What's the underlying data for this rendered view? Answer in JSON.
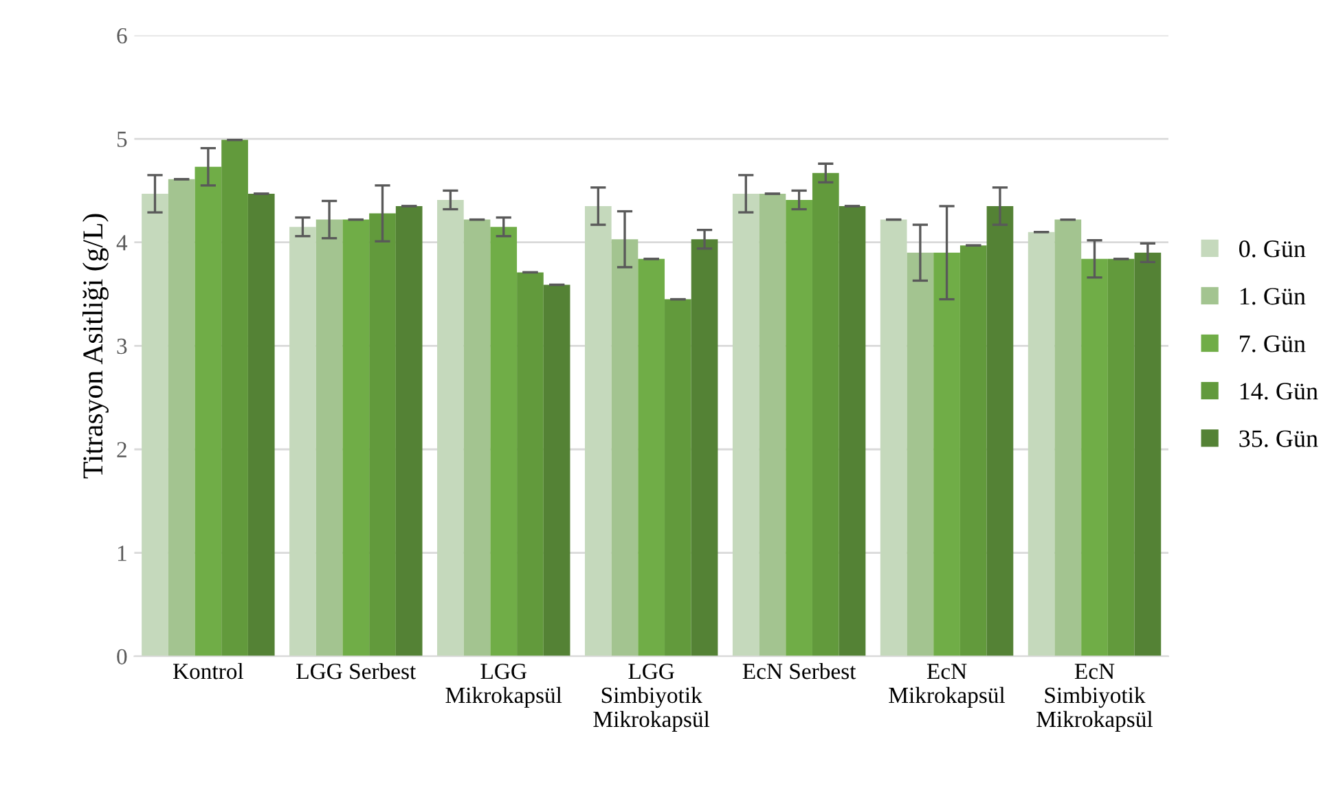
{
  "chart_data": {
    "type": "bar",
    "ylabel": "Titrasyon Asitliği (g/L)",
    "categories": [
      "Kontrol",
      "LGG Serbest",
      "LGG\nMikrokapsül",
      "LGG\nSimbiyotik\nMikrokapsül",
      "EcN Serbest",
      "EcN\nMikrokapsül",
      "EcN\nSimbiyotik\nMikrokapsül"
    ],
    "series": [
      {
        "name": "0. Gün",
        "color": "#c5d9bc",
        "values": [
          4.47,
          4.15,
          4.41,
          4.35,
          4.47,
          4.22,
          4.1
        ],
        "errors": [
          0.18,
          0.09,
          0.09,
          0.18,
          0.18,
          0,
          0
        ]
      },
      {
        "name": "1. Gün",
        "color": "#a3c490",
        "values": [
          4.61,
          4.22,
          4.22,
          4.03,
          4.47,
          3.9,
          4.22
        ],
        "errors": [
          0,
          0.18,
          0,
          0.27,
          0,
          0.27,
          0
        ]
      },
      {
        "name": "7. Gün",
        "color": "#70ad47",
        "values": [
          4.73,
          4.22,
          4.15,
          3.84,
          4.41,
          3.9,
          3.84
        ],
        "errors": [
          0.18,
          0,
          0.09,
          0,
          0.09,
          0.45,
          0.18
        ]
      },
      {
        "name": "14. Gün",
        "color": "#629a3c",
        "values": [
          4.99,
          4.28,
          3.71,
          3.45,
          4.67,
          3.97,
          3.84
        ],
        "errors": [
          0,
          0.27,
          0,
          0,
          0.09,
          0,
          0
        ]
      },
      {
        "name": "35. Gün",
        "color": "#548235",
        "values": [
          4.47,
          4.35,
          3.59,
          4.03,
          4.35,
          4.35,
          3.9
        ],
        "errors": [
          0,
          0,
          0,
          0.09,
          0,
          0.18,
          0.09
        ]
      }
    ],
    "ylim": [
      0,
      6
    ],
    "yticks": [
      0,
      1,
      2,
      3,
      4,
      5,
      6
    ],
    "grid": "y",
    "legend": "right"
  }
}
